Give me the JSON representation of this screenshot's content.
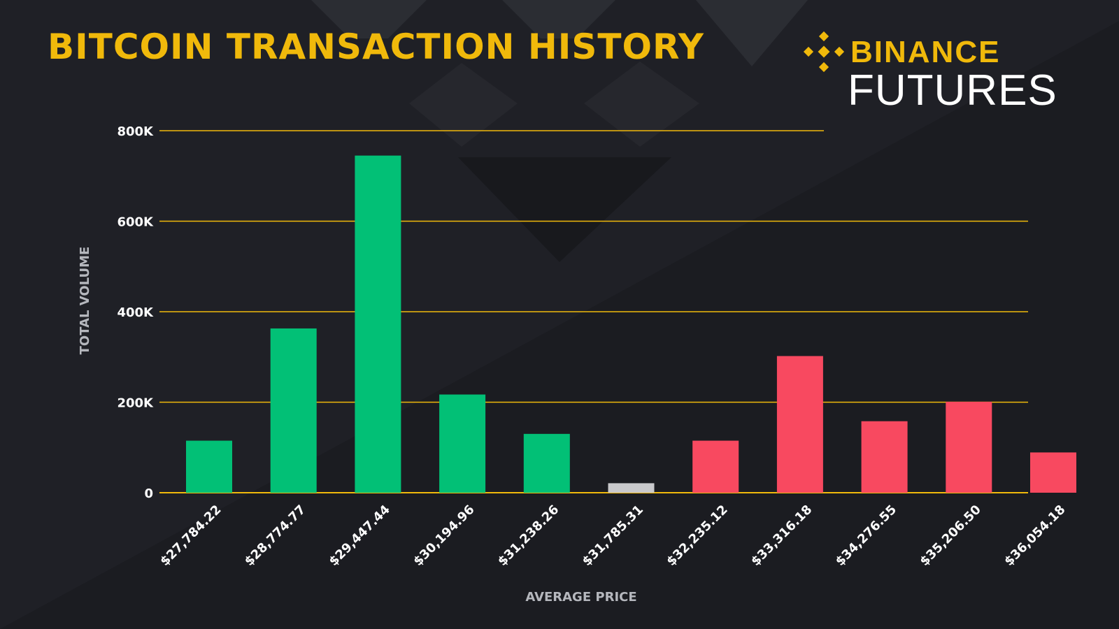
{
  "header": {
    "title": "BITCOIN TRANSACTION HISTORY"
  },
  "brand": {
    "top": "BINANCE",
    "bottom": "FUTURES",
    "logo_icon": "binance-diamond-icon"
  },
  "colors": {
    "background": "#1f2026",
    "accent": "#f0b90b",
    "buy": "#02c076",
    "sell": "#f84960",
    "neutral": "#c9c9cc"
  },
  "chart_data": {
    "type": "bar",
    "title": "BITCOIN TRANSACTION HISTORY",
    "xlabel": "AVERAGE PRICE",
    "ylabel": "TOTAL VOLUME",
    "ylim": [
      0,
      800000
    ],
    "yticks": [
      0,
      200000,
      400000,
      600000,
      800000
    ],
    "ytick_labels": [
      "0",
      "200K",
      "400K",
      "600K",
      "800K"
    ],
    "grid": true,
    "categories": [
      "$27,784.22",
      "$28,774.77",
      "$29,447.44",
      "$30,194.96",
      "$31,238.26",
      "$31,785.31",
      "$32,235.12",
      "$33,316.18",
      "$34,276.55",
      "$35,206.50",
      "$36,054.18"
    ],
    "values": [
      115000,
      363000,
      745000,
      217000,
      130000,
      21000,
      115000,
      302000,
      158000,
      201000,
      89000
    ],
    "bar_colors": [
      "#02c076",
      "#02c076",
      "#02c076",
      "#02c076",
      "#02c076",
      "#c9c9cc",
      "#f84960",
      "#f84960",
      "#f84960",
      "#f84960",
      "#f84960"
    ]
  }
}
